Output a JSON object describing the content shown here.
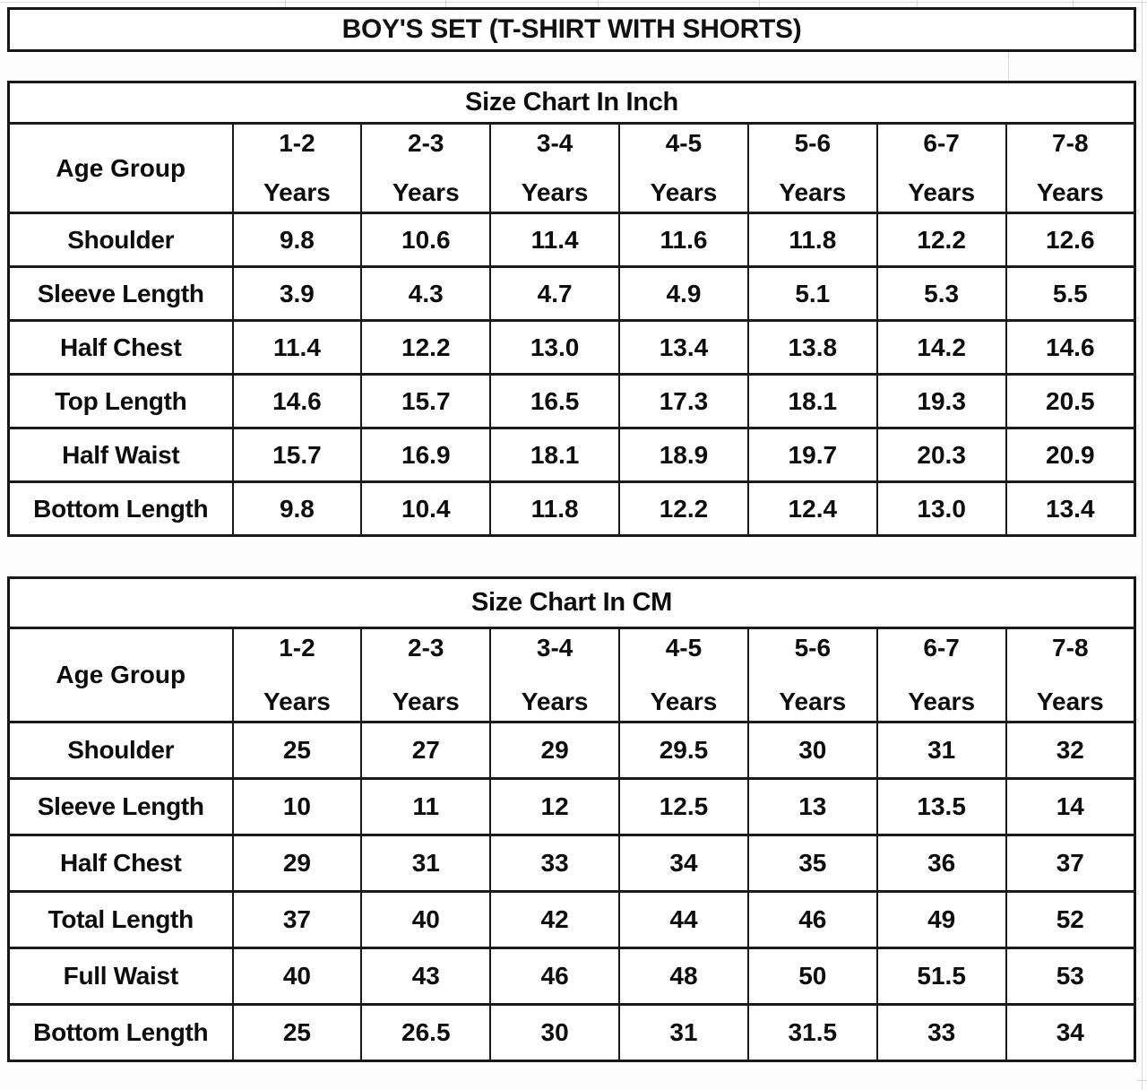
{
  "page_title": "BOY'S SET (T-SHIRT WITH SHORTS)",
  "colors": {
    "border": "#1a1a1a",
    "text": "#0d0d0d",
    "background": "#ffffff",
    "faint_gridline": "#cccccc"
  },
  "tables": [
    {
      "caption": "Size Chart In Inch",
      "corner_label": "Age Group",
      "age_groups": [
        {
          "range": "1-2",
          "unit": "Years"
        },
        {
          "range": "2-3",
          "unit": "Years"
        },
        {
          "range": "3-4",
          "unit": "Years"
        },
        {
          "range": "4-5",
          "unit": "Years"
        },
        {
          "range": "5-6",
          "unit": "Years"
        },
        {
          "range": "6-7",
          "unit": "Years"
        },
        {
          "range": "7-8",
          "unit": "Years"
        }
      ],
      "rows": [
        {
          "label": "Shoulder",
          "values": [
            "9.8",
            "10.6",
            "11.4",
            "11.6",
            "11.8",
            "12.2",
            "12.6"
          ]
        },
        {
          "label": "Sleeve Length",
          "values": [
            "3.9",
            "4.3",
            "4.7",
            "4.9",
            "5.1",
            "5.3",
            "5.5"
          ]
        },
        {
          "label": "Half Chest",
          "values": [
            "11.4",
            "12.2",
            "13.0",
            "13.4",
            "13.8",
            "14.2",
            "14.6"
          ]
        },
        {
          "label": "Top Length",
          "values": [
            "14.6",
            "15.7",
            "16.5",
            "17.3",
            "18.1",
            "19.3",
            "20.5"
          ]
        },
        {
          "label": "Half Waist",
          "values": [
            "15.7",
            "16.9",
            "18.1",
            "18.9",
            "19.7",
            "20.3",
            "20.9"
          ]
        },
        {
          "label": "Bottom Length",
          "values": [
            "9.8",
            "10.4",
            "11.8",
            "12.2",
            "12.4",
            "13.0",
            "13.4"
          ]
        }
      ]
    },
    {
      "caption": "Size Chart In CM",
      "corner_label": "Age Group",
      "age_groups": [
        {
          "range": "1-2",
          "unit": "Years"
        },
        {
          "range": "2-3",
          "unit": "Years"
        },
        {
          "range": "3-4",
          "unit": "Years"
        },
        {
          "range": "4-5",
          "unit": "Years"
        },
        {
          "range": "5-6",
          "unit": "Years"
        },
        {
          "range": "6-7",
          "unit": "Years"
        },
        {
          "range": "7-8",
          "unit": "Years"
        }
      ],
      "rows": [
        {
          "label": "Shoulder",
          "values": [
            "25",
            "27",
            "29",
            "29.5",
            "30",
            "31",
            "32"
          ]
        },
        {
          "label": "Sleeve Length",
          "values": [
            "10",
            "11",
            "12",
            "12.5",
            "13",
            "13.5",
            "14"
          ]
        },
        {
          "label": "Half Chest",
          "values": [
            "29",
            "31",
            "33",
            "34",
            "35",
            "36",
            "37"
          ]
        },
        {
          "label": "Total Length",
          "values": [
            "37",
            "40",
            "42",
            "44",
            "46",
            "49",
            "52"
          ]
        },
        {
          "label": "Full Waist",
          "values": [
            "40",
            "43",
            "46",
            "48",
            "50",
            "51.5",
            "53"
          ]
        },
        {
          "label": "Bottom Length",
          "values": [
            "25",
            "26.5",
            "30",
            "31",
            "31.5",
            "33",
            "34"
          ]
        }
      ]
    }
  ]
}
